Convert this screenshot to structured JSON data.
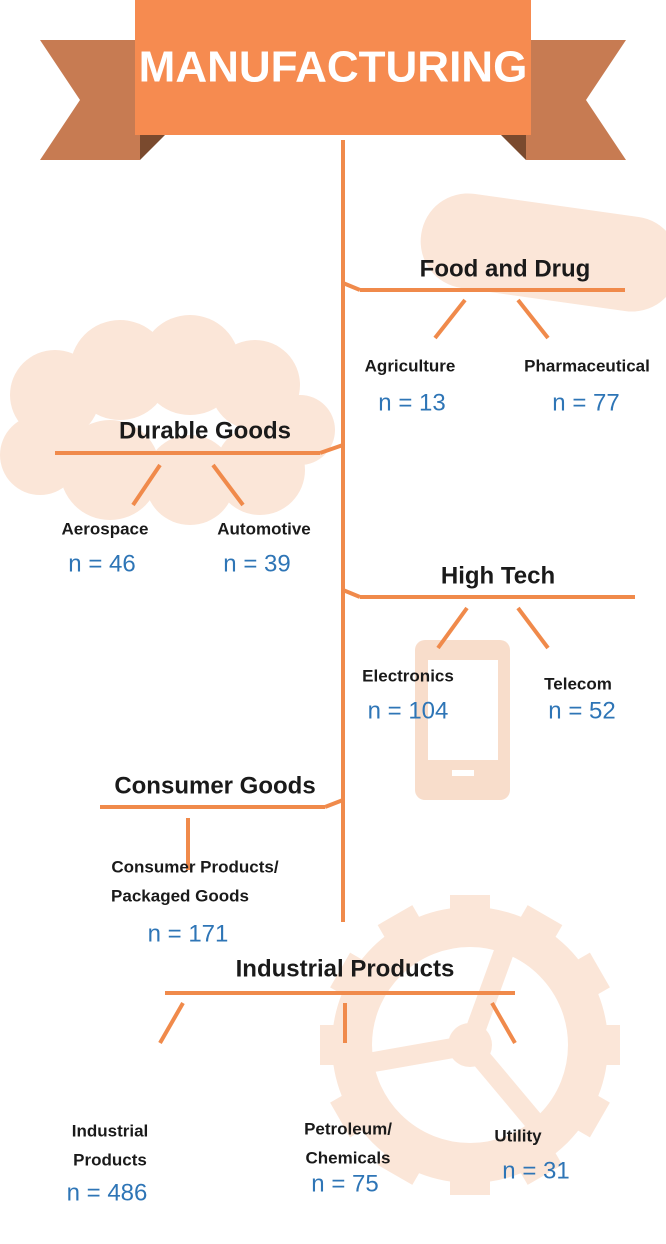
{
  "title": "MANUFACTURING",
  "groups": [
    {
      "label": "Food and Drug",
      "children": [
        {
          "label": [
            "Agriculture"
          ],
          "count": "n = 13"
        },
        {
          "label": [
            "Pharmaceutical"
          ],
          "count": "n = 77"
        }
      ]
    },
    {
      "label": "Durable Goods",
      "children": [
        {
          "label": [
            "Aerospace"
          ],
          "count": "n = 46"
        },
        {
          "label": [
            "Automotive"
          ],
          "count": "n = 39"
        }
      ]
    },
    {
      "label": "High Tech",
      "children": [
        {
          "label": [
            "Electronics"
          ],
          "count": "n = 104"
        },
        {
          "label": [
            "Telecom"
          ],
          "count": "n = 52"
        }
      ]
    },
    {
      "label": "Consumer Goods",
      "children": [
        {
          "label": [
            "Consumer Products/",
            "Packaged Goods"
          ],
          "count": "n = 171"
        }
      ]
    },
    {
      "label": "Industrial Products",
      "children": [
        {
          "label": [
            "Industrial",
            "Products"
          ],
          "count": "n = 486"
        },
        {
          "label": [
            "Petroleum/",
            "Chemicals"
          ],
          "count": "n = 75"
        },
        {
          "label": [
            "Utility"
          ],
          "count": "n = 31"
        }
      ]
    }
  ]
}
